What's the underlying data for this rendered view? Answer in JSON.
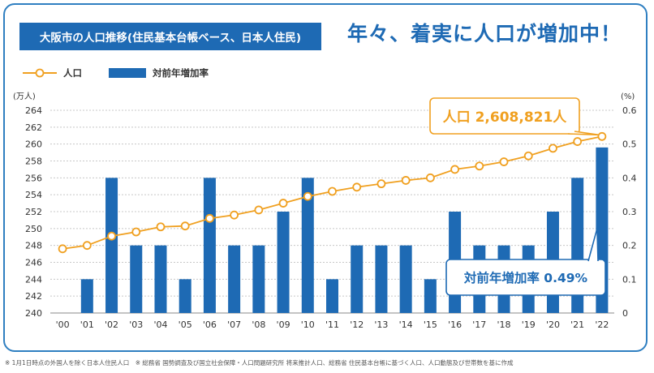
{
  "title": "大阪市の人口推移(住民基本台帳ベース、日本人住民)",
  "headline": "年々、着実に人口が増加中！",
  "legend": {
    "population": "人口",
    "growth": "対前年増加率"
  },
  "footnote": "※ 1月1日時点の外国人を除く日本人住民人口　※ 総務省 国勢調査及び国立社会保障・人口問題研究所 将来推計人口、総務省 住民基本台帳に基づく人口、人口動態及び世帯数を基に作成",
  "callouts": {
    "population": "人口 2,608,821人",
    "growth": "対前年増加率 0.49%"
  },
  "colors": {
    "primary": "#1e6ab4",
    "accent": "#f0a020",
    "frame": "#2f7fc1"
  },
  "chart_data": {
    "type": "bar+line",
    "categories": [
      "'00",
      "'01",
      "'02",
      "'03",
      "'04",
      "'05",
      "'06",
      "'07",
      "'08",
      "'09",
      "'10",
      "'11",
      "'12",
      "'13",
      "'14",
      "'15",
      "'16",
      "'17",
      "'18",
      "'19",
      "'20",
      "'21",
      "'22"
    ],
    "y_left": {
      "label": "(万人)",
      "min": 240,
      "max": 264,
      "ticks": [
        240,
        242,
        244,
        246,
        248,
        250,
        252,
        254,
        256,
        258,
        260,
        262,
        264
      ]
    },
    "y_right": {
      "label": "(%)",
      "min": 0,
      "max": 0.6,
      "ticks": [
        "0",
        "0.1",
        "0.2",
        "0.3",
        "0.4",
        "0.5",
        "0.6"
      ]
    },
    "series": [
      {
        "name": "人口",
        "type": "line",
        "axis": "left",
        "color": "#f0a020",
        "values": [
          247.6,
          248.0,
          249.1,
          249.6,
          250.2,
          250.3,
          251.2,
          251.6,
          252.2,
          253.0,
          253.8,
          254.4,
          254.9,
          255.3,
          255.7,
          256.0,
          257.0,
          257.4,
          257.9,
          258.6,
          259.5,
          260.3,
          260.9
        ]
      },
      {
        "name": "対前年増加率",
        "type": "bar",
        "axis": "right",
        "color": "#1e6ab4",
        "values": [
          0,
          0.1,
          0.4,
          0.2,
          0.2,
          0.1,
          0.4,
          0.2,
          0.2,
          0.3,
          0.4,
          0.1,
          0.2,
          0.2,
          0.2,
          0.1,
          0.3,
          0.2,
          0.2,
          0.2,
          0.3,
          0.4,
          0.49
        ]
      }
    ],
    "grid": "horizontal dashed"
  }
}
